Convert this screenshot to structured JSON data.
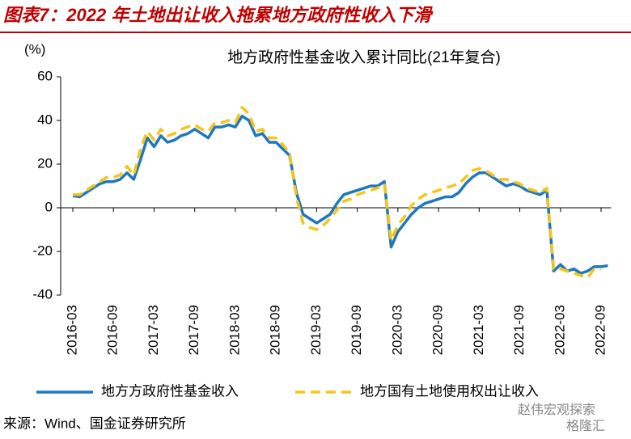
{
  "header": {
    "title": "图表7：2022 年土地出让收入拖累地方政府性收入下滑"
  },
  "chart_data": {
    "type": "line",
    "title": "地方政府性基金收入累计同比(21年复合)",
    "y_unit": "(%)",
    "categories": [
      "2016-03",
      null,
      null,
      null,
      null,
      null,
      "2016-09",
      null,
      null,
      null,
      null,
      null,
      "2017-03",
      null,
      null,
      null,
      null,
      null,
      "2017-09",
      null,
      null,
      null,
      null,
      null,
      "2018-03",
      null,
      null,
      null,
      null,
      null,
      "2018-09",
      null,
      null,
      null,
      null,
      null,
      "2019-03",
      null,
      null,
      null,
      null,
      null,
      "2019-09",
      null,
      null,
      null,
      null,
      null,
      "2020-03",
      null,
      null,
      null,
      null,
      null,
      "2020-09",
      null,
      null,
      null,
      null,
      null,
      "2021-03",
      null,
      null,
      null,
      null,
      null,
      "2021-09",
      null,
      null,
      null,
      null,
      null,
      "2022-03",
      null,
      null,
      null,
      null,
      null,
      "2022-09",
      null
    ],
    "series": [
      {
        "name": "地方方政府性基金收入",
        "color": "#1f77c0",
        "dash": false,
        "values": [
          5.5,
          5,
          7,
          9,
          11,
          12,
          12,
          13,
          16,
          13,
          22,
          32,
          28,
          33,
          30,
          31,
          33,
          34,
          36,
          34,
          32,
          37,
          37,
          38,
          37,
          42,
          40,
          33,
          34,
          30,
          30,
          27,
          24,
          7,
          -3,
          -5,
          -7,
          -5,
          -3,
          2,
          6,
          7,
          8,
          9,
          10,
          10,
          12,
          -18,
          -11,
          -7,
          -3,
          0,
          2,
          3,
          4,
          5,
          5,
          7,
          11,
          14,
          16,
          16,
          14,
          12,
          10,
          11,
          10,
          8,
          7,
          6,
          8,
          -29,
          -26,
          -29,
          -28,
          -30,
          -29,
          -27,
          -27,
          -26.5
        ]
      },
      {
        "name": "地方国有土地使用权出让收入",
        "color": "#f5c518",
        "dash": true,
        "values": [
          6,
          6,
          8,
          10,
          12,
          14,
          14,
          15,
          19,
          15,
          27,
          35,
          31,
          36,
          33,
          34,
          36,
          37,
          38,
          36,
          35,
          39,
          39,
          40,
          39,
          46,
          43,
          35,
          36,
          32,
          32,
          29,
          25,
          5,
          -7,
          -9,
          -10,
          -8,
          -5,
          -1,
          3,
          4,
          6,
          7,
          8,
          9,
          11,
          -15,
          -8,
          -4,
          1,
          4,
          6,
          7,
          8,
          9,
          10,
          11,
          14,
          17,
          18,
          17,
          15,
          13,
          13,
          12,
          11,
          9,
          8,
          7,
          9,
          -28,
          -28,
          -29,
          -30,
          -31,
          -32,
          -28,
          -28,
          null
        ]
      }
    ],
    "ylim": [
      -40,
      60
    ],
    "yticks": [
      60,
      40,
      20,
      0,
      -20,
      -40
    ],
    "legend": "bottom"
  },
  "footer": {
    "source": "来源：Wind、国金证券研究所",
    "watermark": "赵伟宏观探索",
    "watermark2": "格隆汇"
  }
}
